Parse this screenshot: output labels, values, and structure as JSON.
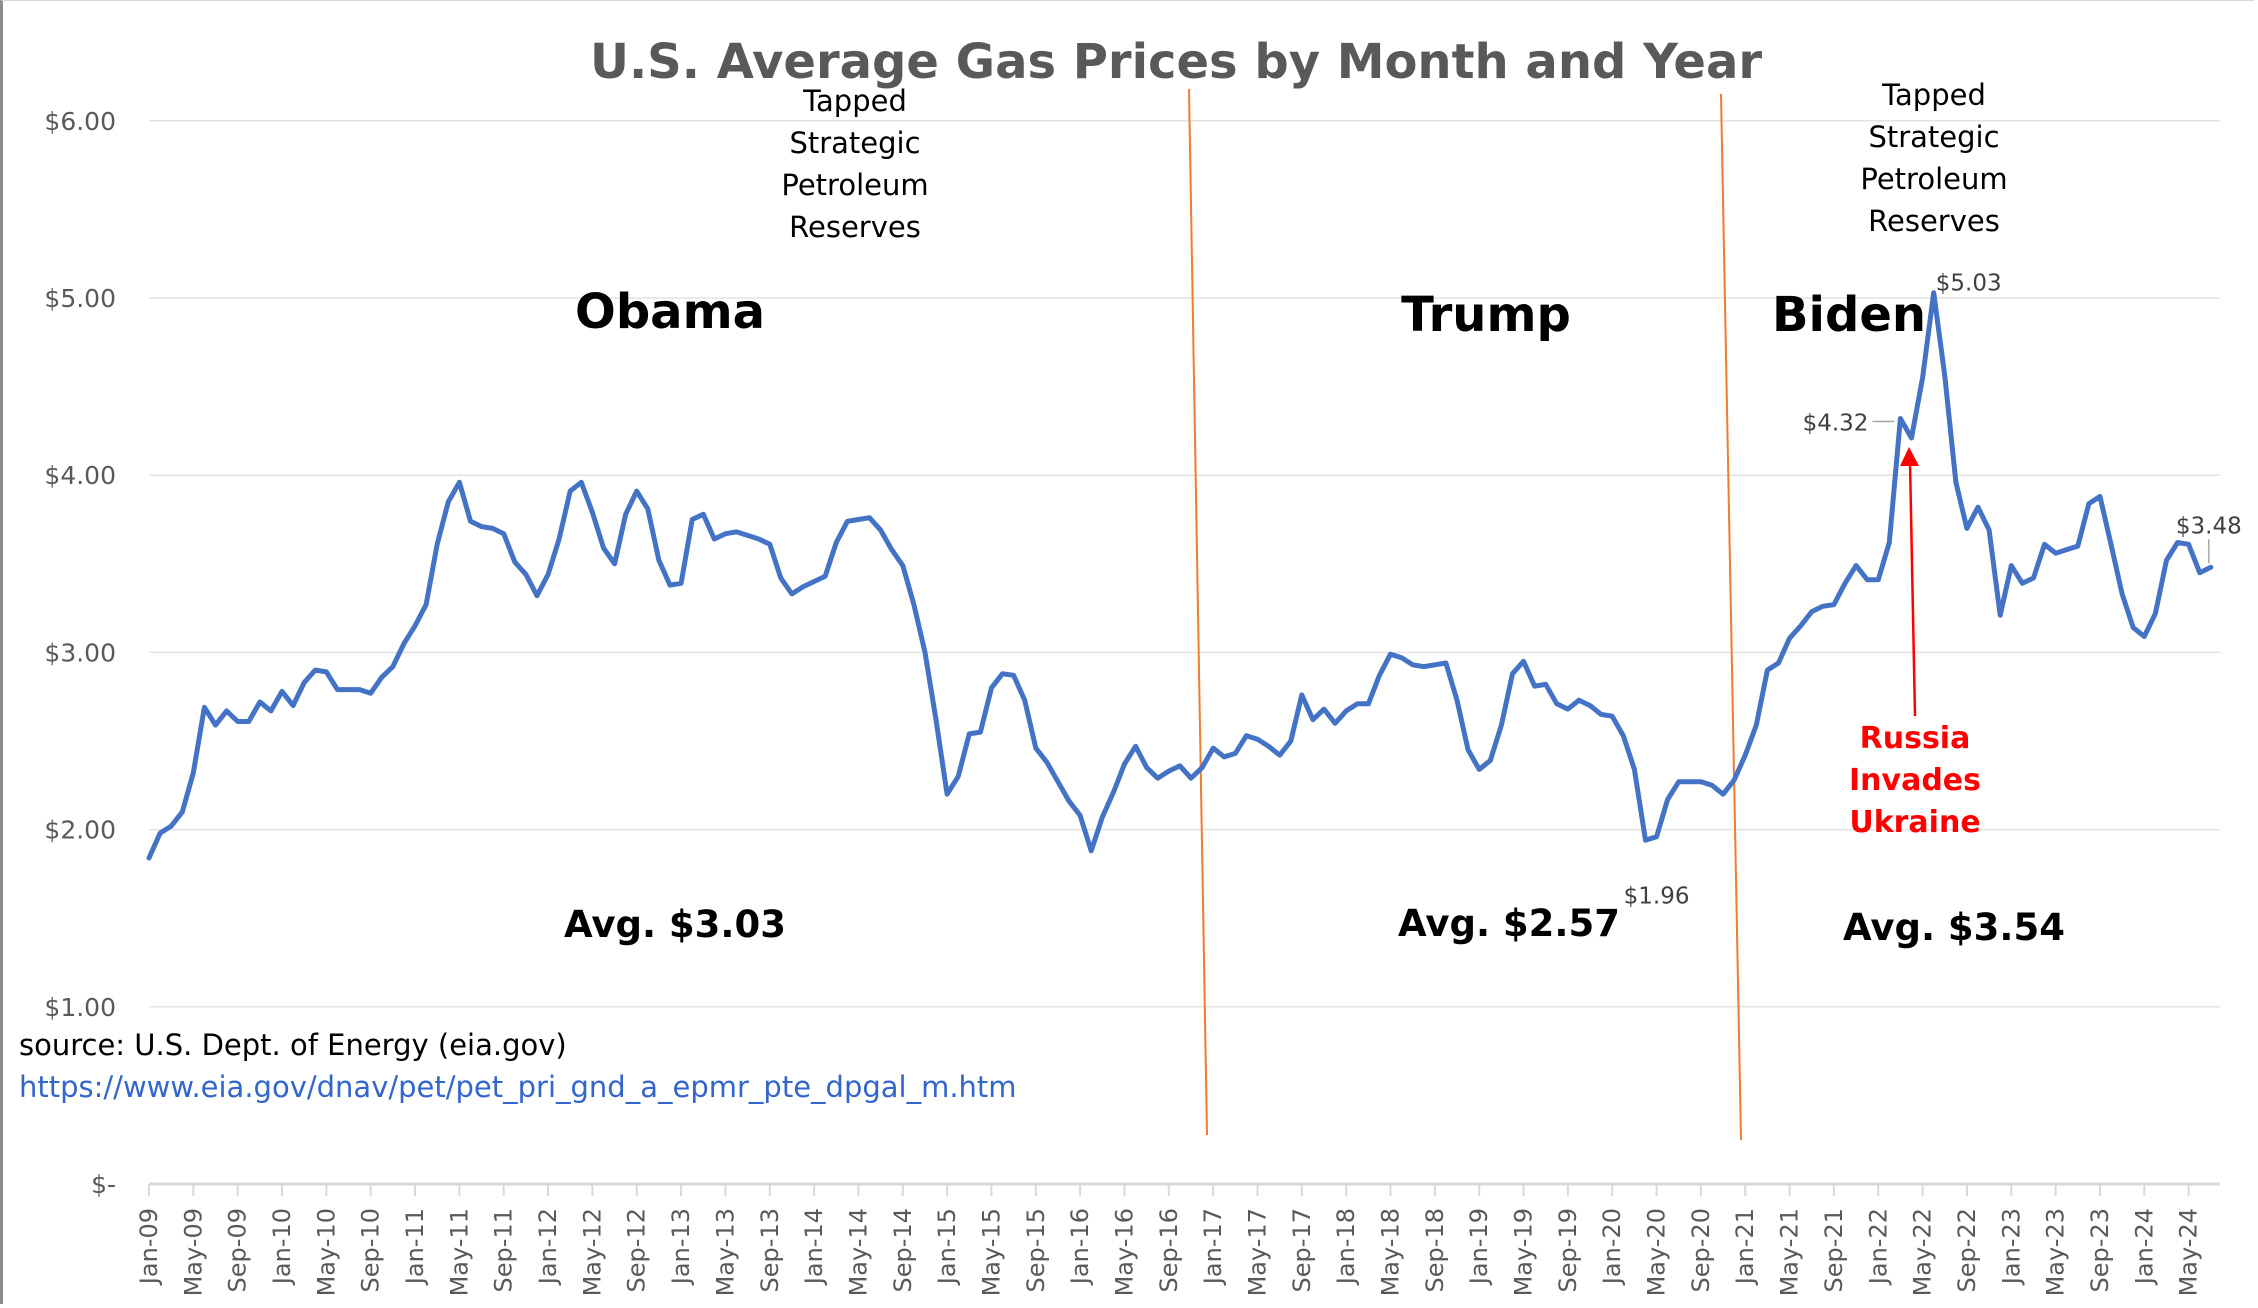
{
  "chart_data": {
    "type": "line",
    "title": "U.S. Average Gas Prices by Month and Year",
    "xlabel": "",
    "ylabel": "",
    "ylim": [
      0,
      6
    ],
    "y_ticks": [
      "$-",
      "$1.00",
      "$2.00",
      "$3.00",
      "$4.00",
      "$5.00",
      "$6.00"
    ],
    "grid": true,
    "start_month": "2009-01",
    "x_tick_labels": [
      "Jan-09",
      "May-09",
      "Sep-09",
      "Jan-10",
      "May-10",
      "Sep-10",
      "Jan-11",
      "May-11",
      "Sep-11",
      "Jan-12",
      "May-12",
      "Sep-12",
      "Jan-13",
      "May-13",
      "Sep-13",
      "Jan-14",
      "May-14",
      "Sep-14",
      "Jan-15",
      "May-15",
      "Sep-15",
      "Jan-16",
      "May-16",
      "Sep-16",
      "Jan-17",
      "May-17",
      "Sep-17",
      "Jan-18",
      "May-18",
      "Sep-18",
      "Jan-19",
      "May-19",
      "Sep-19",
      "Jan-20",
      "May-20",
      "Sep-20",
      "Jan-21",
      "May-21",
      "Sep-21",
      "Jan-22",
      "May-22",
      "Sep-22",
      "Jan-23",
      "May-23",
      "Sep-23",
      "Jan-24",
      "May-24"
    ],
    "series": [
      {
        "color": "#4472C4",
        "values": [
          1.84,
          1.98,
          2.02,
          2.1,
          2.32,
          2.69,
          2.59,
          2.67,
          2.61,
          2.61,
          2.72,
          2.67,
          2.78,
          2.7,
          2.83,
          2.9,
          2.89,
          2.79,
          2.79,
          2.79,
          2.77,
          2.86,
          2.92,
          3.05,
          3.15,
          3.27,
          3.61,
          3.85,
          3.96,
          3.74,
          3.71,
          3.7,
          3.67,
          3.51,
          3.44,
          3.32,
          3.44,
          3.64,
          3.91,
          3.96,
          3.79,
          3.59,
          3.5,
          3.78,
          3.91,
          3.81,
          3.52,
          3.38,
          3.39,
          3.75,
          3.78,
          3.64,
          3.67,
          3.68,
          3.66,
          3.64,
          3.61,
          3.42,
          3.33,
          3.37,
          3.4,
          3.43,
          3.62,
          3.74,
          3.75,
          3.76,
          3.69,
          3.58,
          3.49,
          3.27,
          3.0,
          2.62,
          2.2,
          2.3,
          2.54,
          2.55,
          2.8,
          2.88,
          2.87,
          2.73,
          2.46,
          2.38,
          2.27,
          2.16,
          2.08,
          1.88,
          2.07,
          2.21,
          2.37,
          2.47,
          2.35,
          2.29,
          2.33,
          2.36,
          2.29,
          2.35,
          2.46,
          2.41,
          2.43,
          2.53,
          2.51,
          2.47,
          2.42,
          2.5,
          2.76,
          2.62,
          2.68,
          2.6,
          2.67,
          2.71,
          2.71,
          2.87,
          2.99,
          2.97,
          2.93,
          2.92,
          2.93,
          2.94,
          2.73,
          2.45,
          2.34,
          2.39,
          2.59,
          2.88,
          2.95,
          2.81,
          2.82,
          2.71,
          2.68,
          2.73,
          2.7,
          2.65,
          2.64,
          2.53,
          2.34,
          1.94,
          1.96,
          2.17,
          2.27,
          2.27,
          2.27,
          2.25,
          2.2,
          2.28,
          2.42,
          2.59,
          2.9,
          2.94,
          3.08,
          3.15,
          3.23,
          3.26,
          3.27,
          3.39,
          3.49,
          3.41,
          3.41,
          3.62,
          4.32,
          4.21,
          4.55,
          5.03,
          4.56,
          3.96,
          3.7,
          3.82,
          3.69,
          3.21,
          3.49,
          3.39,
          3.42,
          3.61,
          3.56,
          3.58,
          3.6,
          3.84,
          3.88,
          3.61,
          3.33,
          3.14,
          3.09,
          3.22,
          3.52,
          3.62,
          3.61,
          3.45,
          3.48
        ]
      }
    ],
    "data_labels": [
      {
        "month": "2022-06",
        "text": "$5.03"
      },
      {
        "month": "2022-03",
        "text": "$4.32"
      },
      {
        "month": "2020-05",
        "text": "$1.96"
      },
      {
        "month": "2024-07",
        "text": "$3.48"
      }
    ],
    "period_dividers": [
      {
        "month": "2017-01",
        "color": "#ED7D31"
      },
      {
        "month": "2021-01",
        "color": "#ED7D31"
      }
    ],
    "annotations": {
      "tapped_left": [
        "Tapped",
        "Strategic",
        "Petroleum",
        "Reserves"
      ],
      "tapped_right": [
        "Tapped",
        "Strategic",
        "Petroleum",
        "Reserves"
      ],
      "obama": "Obama",
      "trump": "Trump",
      "biden": "Biden",
      "avg_obama": "Avg. $3.03",
      "avg_trump": "Avg. $2.57",
      "avg_biden": "Avg. $3.54",
      "russia": [
        "Russia",
        "Invades",
        "Ukraine"
      ],
      "russia_color": "#FF0000",
      "source": "source: U.S. Dept. of Energy (eia.gov)",
      "url": "https://www.eia.gov/dnav/pet/pet_pri_gnd_a_epmr_pte_dpgal_m.htm"
    }
  }
}
